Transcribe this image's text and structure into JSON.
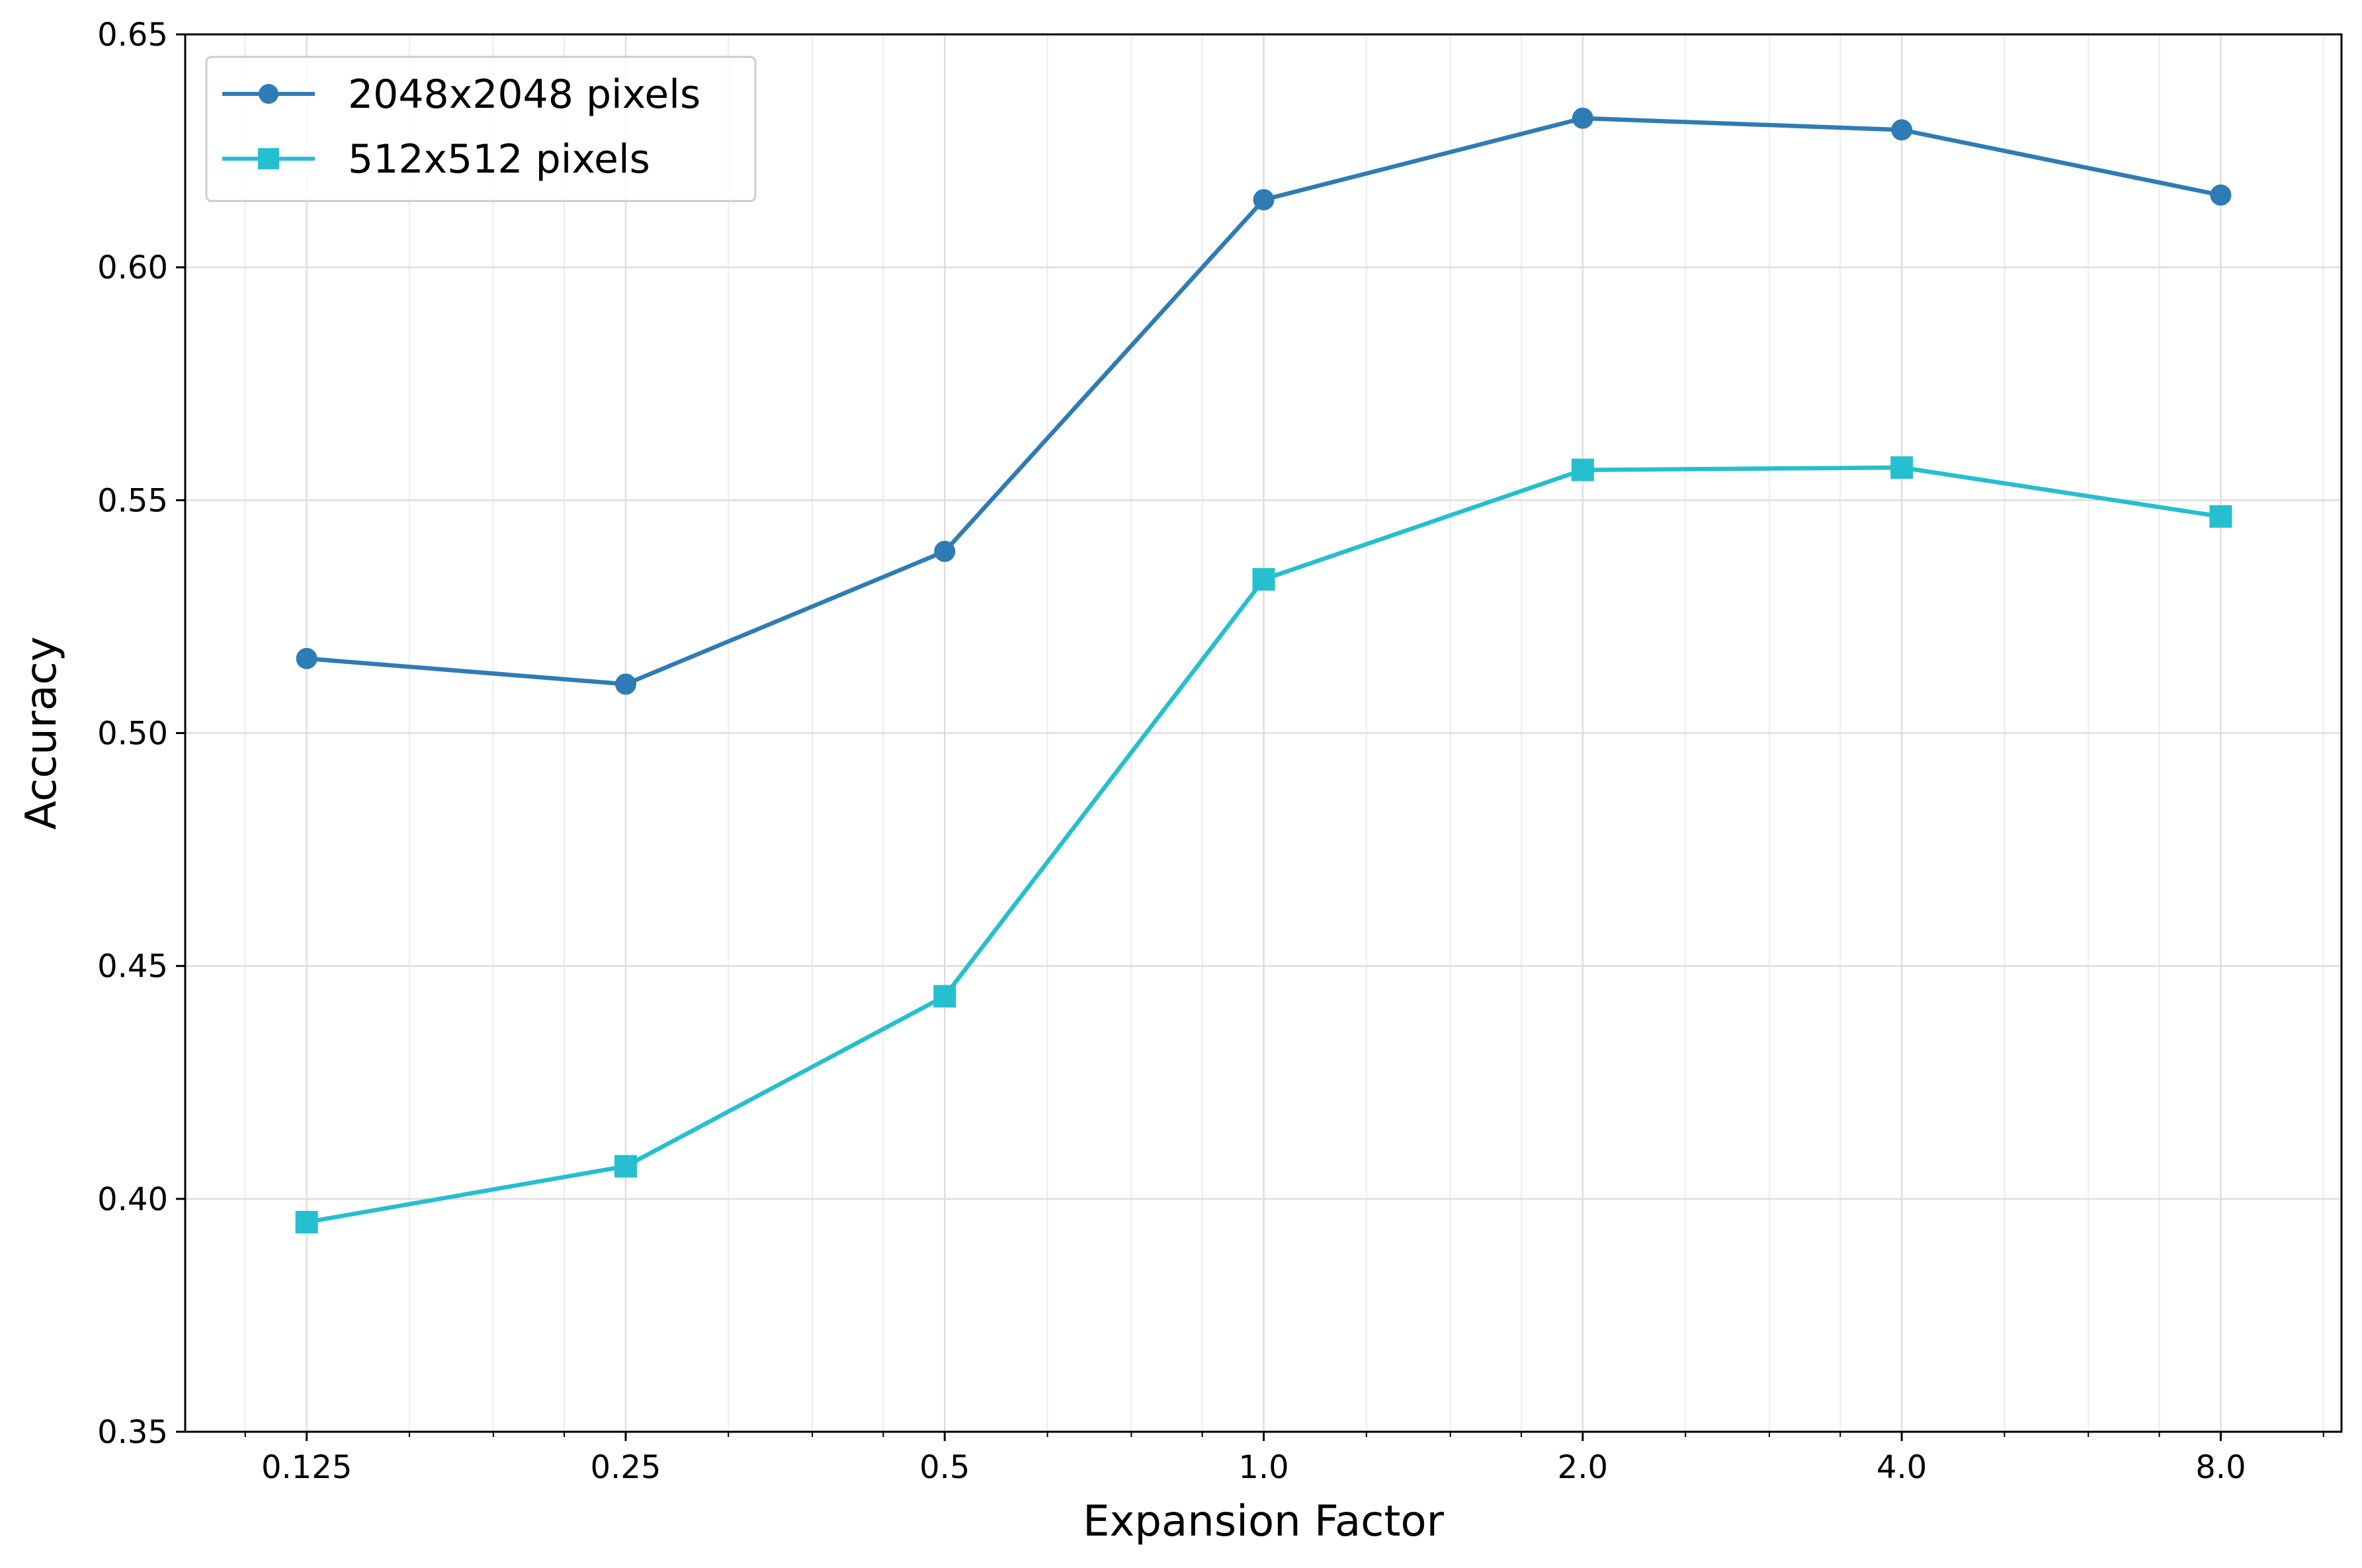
{
  "chart_data": {
    "type": "line",
    "title": "",
    "xlabel": "Expansion Factor",
    "ylabel": "Accuracy",
    "xscale": "log2",
    "x": [
      0.125,
      0.25,
      0.5,
      1.0,
      2.0,
      4.0,
      8.0
    ],
    "x_tick_labels": [
      "0.125",
      "0.25",
      "0.5",
      "1.0",
      "2.0",
      "4.0",
      "8.0"
    ],
    "xlim": [
      0.096,
      10.4
    ],
    "ylim": [
      0.35,
      0.65
    ],
    "y_ticks": [
      0.35,
      0.4,
      0.45,
      0.5,
      0.55,
      0.6,
      0.65
    ],
    "y_tick_labels": [
      "0.35",
      "0.40",
      "0.45",
      "0.50",
      "0.55",
      "0.60",
      "0.65"
    ],
    "grid": true,
    "legend_position": "top-left",
    "series": [
      {
        "name": "2048x2048 pixels",
        "marker": "circle",
        "color": "#2f7bb6",
        "values": [
          0.516,
          0.5105,
          0.539,
          0.6145,
          0.632,
          0.6295,
          0.6155
        ]
      },
      {
        "name": "512x512 pixels",
        "marker": "square",
        "color": "#25bfcf",
        "values": [
          0.395,
          0.407,
          0.4435,
          0.533,
          0.5565,
          0.557,
          0.5465
        ]
      }
    ]
  }
}
